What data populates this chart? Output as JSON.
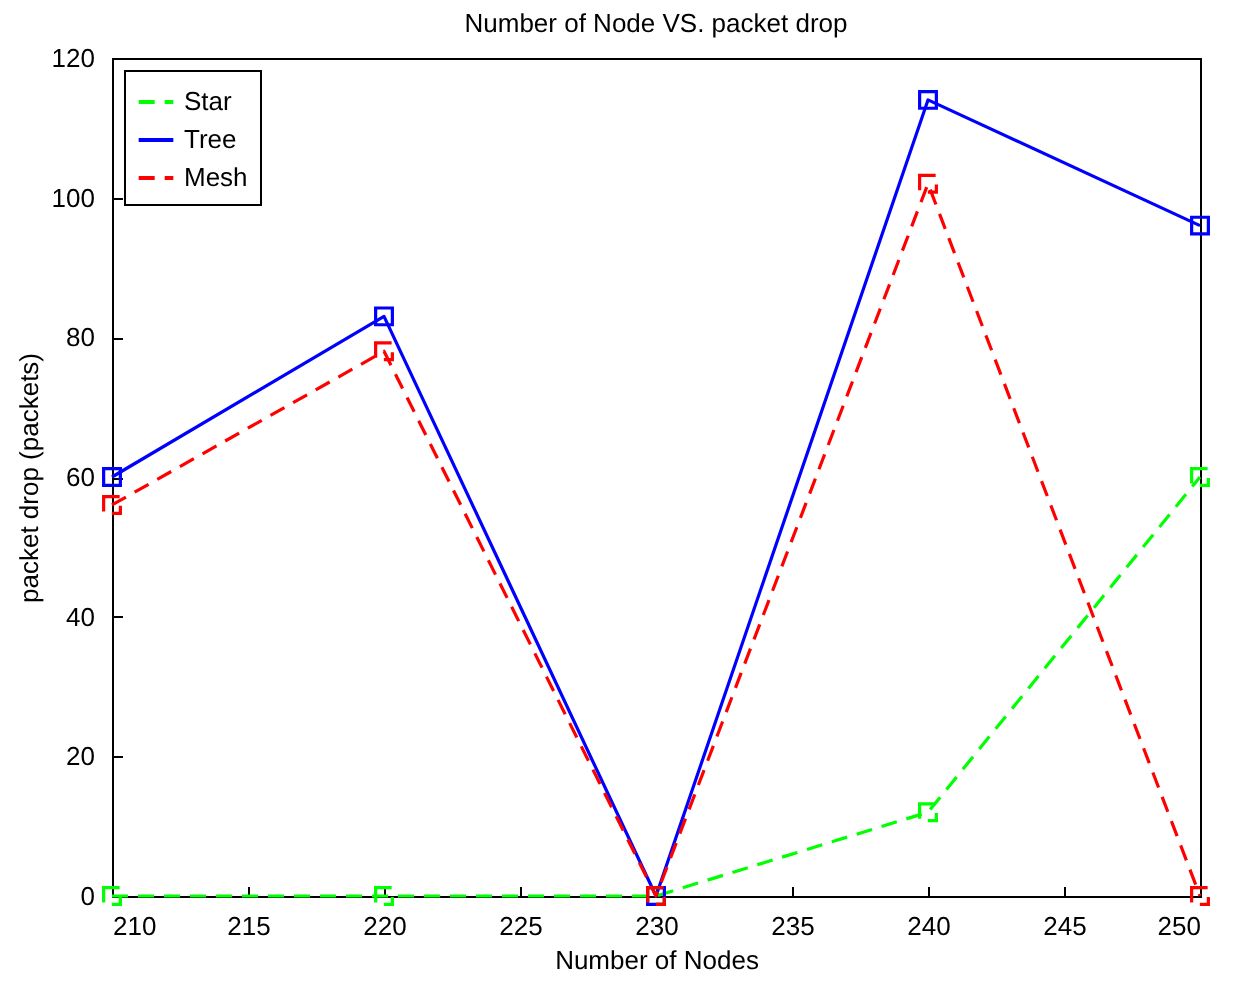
{
  "chart_data": {
    "type": "line",
    "title": "Number of Node VS. packet drop",
    "xlabel": "Number of Nodes",
    "ylabel": "packet drop (packets)",
    "x": [
      210,
      220,
      230,
      240,
      250
    ],
    "xlim": [
      210,
      250
    ],
    "xticks": [
      210,
      215,
      220,
      225,
      230,
      235,
      240,
      245,
      250
    ],
    "ylim": [
      0,
      120
    ],
    "yticks": [
      0,
      20,
      40,
      60,
      80,
      100,
      120
    ],
    "grid": false,
    "legend": "top left",
    "marker": "square",
    "series": [
      {
        "name": "Star",
        "color": "#00ff00",
        "line_style": "dashed",
        "values": [
          0,
          0,
          0,
          12,
          60
        ]
      },
      {
        "name": "Tree",
        "color": "#0000ff",
        "line_style": "solid",
        "values": [
          60,
          83,
          0,
          114,
          96
        ]
      },
      {
        "name": "Mesh",
        "color": "#ff0000",
        "line_style": "dashed",
        "values": [
          56,
          78,
          0,
          102,
          0
        ]
      }
    ]
  }
}
